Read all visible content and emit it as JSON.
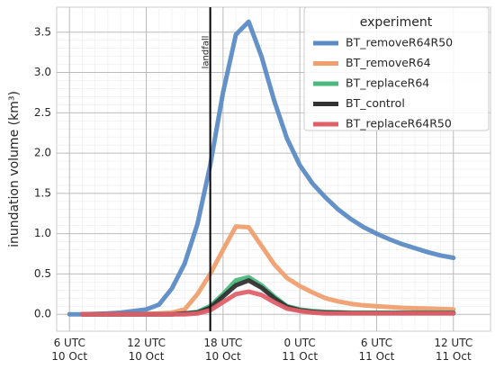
{
  "chart_data": {
    "type": "line",
    "y_label": "inundation volume (km³)",
    "legend_title": "experiment",
    "annotation": {
      "text": "landfall",
      "x": 17
    },
    "x": [
      6,
      7,
      8,
      9,
      10,
      11,
      12,
      13,
      14,
      15,
      16,
      17,
      18,
      19,
      20,
      21,
      22,
      23,
      24,
      25,
      26,
      27,
      28,
      29,
      30,
      31,
      32,
      33,
      34,
      35,
      36
    ],
    "series": [
      {
        "name": "BT_removeR64R50",
        "color": "#5b8bc5",
        "values": [
          0,
          0,
          0.005,
          0.01,
          0.02,
          0.04,
          0.06,
          0.12,
          0.32,
          0.63,
          1.12,
          1.85,
          2.75,
          3.47,
          3.63,
          3.2,
          2.65,
          2.18,
          1.85,
          1.62,
          1.45,
          1.3,
          1.18,
          1.08,
          1.0,
          0.93,
          0.87,
          0.82,
          0.77,
          0.73,
          0.7
        ]
      },
      {
        "name": "BT_removeR64",
        "color": "#f0a070",
        "values": [
          null,
          0,
          0,
          0,
          0,
          0,
          0.005,
          0.01,
          0.02,
          0.06,
          0.25,
          0.5,
          0.8,
          1.09,
          1.08,
          0.85,
          0.62,
          0.45,
          0.35,
          0.27,
          0.2,
          0.16,
          0.13,
          0.11,
          0.1,
          0.09,
          0.08,
          0.075,
          0.07,
          0.065,
          0.06
        ]
      },
      {
        "name": "BT_replaceR64",
        "color": "#4cb87e",
        "values": [
          null,
          0,
          0,
          0,
          0,
          0,
          0,
          0,
          0,
          0.01,
          0.03,
          0.1,
          0.25,
          0.42,
          0.46,
          0.36,
          0.22,
          0.1,
          0.06,
          0.04,
          0.03,
          0.025,
          0.02,
          0.02,
          0.02,
          0.02,
          0.02,
          0.02,
          0.02,
          0.02,
          0.02
        ]
      },
      {
        "name": "BT_control",
        "color": "#333333",
        "values": [
          null,
          0,
          0,
          0,
          0,
          0,
          0,
          0,
          0,
          0.01,
          0.02,
          0.08,
          0.22,
          0.36,
          0.42,
          0.33,
          0.2,
          0.09,
          0.05,
          0.03,
          0.02,
          0.02,
          0.015,
          0.015,
          0.015,
          0.015,
          0.015,
          0.015,
          0.015,
          0.015,
          0.015
        ]
      },
      {
        "name": "BT_replaceR64R50",
        "color": "#e0606a",
        "values": [
          null,
          0,
          0,
          0,
          0,
          0,
          0,
          0,
          0,
          0,
          0.01,
          0.05,
          0.15,
          0.25,
          0.28,
          0.24,
          0.15,
          0.07,
          0.04,
          0.02,
          0.01,
          0.01,
          0.01,
          0.01,
          0.01,
          0.01,
          0.01,
          0.01,
          0.01,
          0.01,
          0.01
        ]
      }
    ],
    "xlim": [
      5,
      38.9
    ],
    "xticks": [
      {
        "value": 6,
        "label": "6 UTC\n10 Oct"
      },
      {
        "value": 12,
        "label": "12 UTC\n10 Oct"
      },
      {
        "value": 18,
        "label": "18 UTC\n10 Oct"
      },
      {
        "value": 24,
        "label": "0 UTC\n11 Oct"
      },
      {
        "value": 30,
        "label": "6 UTC\n11 Oct"
      },
      {
        "value": 36,
        "label": "12 UTC\n11 Oct"
      }
    ],
    "ylim": [
      -0.21,
      3.81
    ],
    "yticks": [
      {
        "value": 0,
        "label": "0.0"
      },
      {
        "value": 0.5,
        "label": "0.5"
      },
      {
        "value": 1,
        "label": "1.0"
      },
      {
        "value": 1.5,
        "label": "1.5"
      },
      {
        "value": 2,
        "label": "2.0"
      },
      {
        "value": 2.5,
        "label": "2.5"
      },
      {
        "value": 3,
        "label": "3.0"
      },
      {
        "value": 3.5,
        "label": "3.5"
      }
    ],
    "grid": true,
    "minor_grid": true,
    "legend": "upper right"
  }
}
